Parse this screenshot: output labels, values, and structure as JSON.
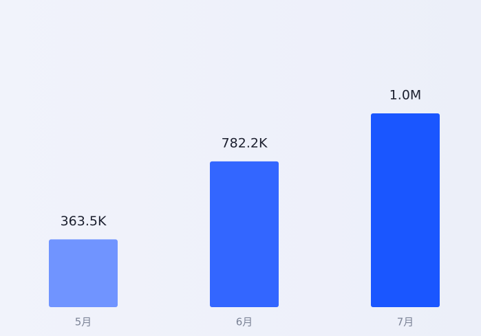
{
  "chart_data": {
    "type": "bar",
    "categories": [
      "5月",
      "6月",
      "7月"
    ],
    "values": [
      363500,
      782200,
      1040000
    ],
    "value_labels": [
      "363.5K",
      "782.2K",
      "1.0M"
    ],
    "colors": [
      "#7094ff",
      "#3366ff",
      "#1a56ff"
    ]
  }
}
